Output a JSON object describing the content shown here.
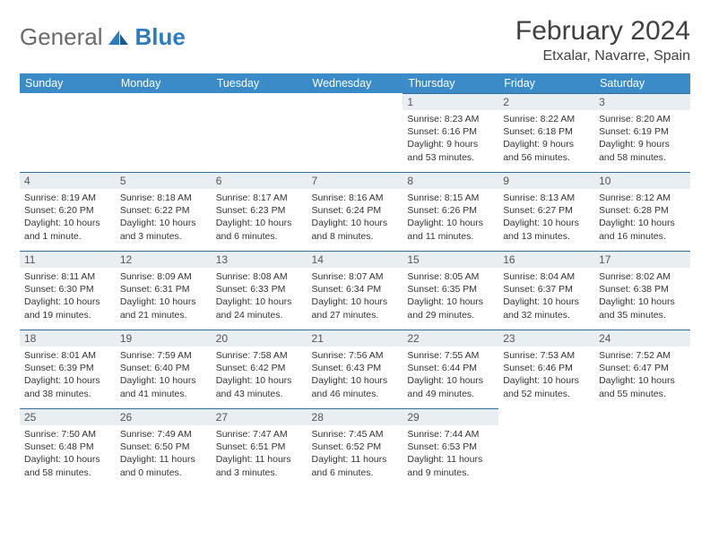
{
  "brand": {
    "name1": "General",
    "name2": "Blue"
  },
  "title": "February 2024",
  "location": "Etxalar, Navarre, Spain",
  "colors": {
    "header_bg": "#3b8bc9",
    "header_text": "#ffffff",
    "daybar_bg": "#e9eef2",
    "daybar_border": "#2d6fa3",
    "text": "#333333",
    "brand_gray": "#6a6a6a",
    "brand_blue": "#2d7cc1"
  },
  "day_headers": [
    "Sunday",
    "Monday",
    "Tuesday",
    "Wednesday",
    "Thursday",
    "Friday",
    "Saturday"
  ],
  "weeks": [
    [
      null,
      null,
      null,
      null,
      {
        "n": "1",
        "sr": "Sunrise: 8:23 AM",
        "ss": "Sunset: 6:16 PM",
        "dl1": "Daylight: 9 hours",
        "dl2": "and 53 minutes."
      },
      {
        "n": "2",
        "sr": "Sunrise: 8:22 AM",
        "ss": "Sunset: 6:18 PM",
        "dl1": "Daylight: 9 hours",
        "dl2": "and 56 minutes."
      },
      {
        "n": "3",
        "sr": "Sunrise: 8:20 AM",
        "ss": "Sunset: 6:19 PM",
        "dl1": "Daylight: 9 hours",
        "dl2": "and 58 minutes."
      }
    ],
    [
      {
        "n": "4",
        "sr": "Sunrise: 8:19 AM",
        "ss": "Sunset: 6:20 PM",
        "dl1": "Daylight: 10 hours",
        "dl2": "and 1 minute."
      },
      {
        "n": "5",
        "sr": "Sunrise: 8:18 AM",
        "ss": "Sunset: 6:22 PM",
        "dl1": "Daylight: 10 hours",
        "dl2": "and 3 minutes."
      },
      {
        "n": "6",
        "sr": "Sunrise: 8:17 AM",
        "ss": "Sunset: 6:23 PM",
        "dl1": "Daylight: 10 hours",
        "dl2": "and 6 minutes."
      },
      {
        "n": "7",
        "sr": "Sunrise: 8:16 AM",
        "ss": "Sunset: 6:24 PM",
        "dl1": "Daylight: 10 hours",
        "dl2": "and 8 minutes."
      },
      {
        "n": "8",
        "sr": "Sunrise: 8:15 AM",
        "ss": "Sunset: 6:26 PM",
        "dl1": "Daylight: 10 hours",
        "dl2": "and 11 minutes."
      },
      {
        "n": "9",
        "sr": "Sunrise: 8:13 AM",
        "ss": "Sunset: 6:27 PM",
        "dl1": "Daylight: 10 hours",
        "dl2": "and 13 minutes."
      },
      {
        "n": "10",
        "sr": "Sunrise: 8:12 AM",
        "ss": "Sunset: 6:28 PM",
        "dl1": "Daylight: 10 hours",
        "dl2": "and 16 minutes."
      }
    ],
    [
      {
        "n": "11",
        "sr": "Sunrise: 8:11 AM",
        "ss": "Sunset: 6:30 PM",
        "dl1": "Daylight: 10 hours",
        "dl2": "and 19 minutes."
      },
      {
        "n": "12",
        "sr": "Sunrise: 8:09 AM",
        "ss": "Sunset: 6:31 PM",
        "dl1": "Daylight: 10 hours",
        "dl2": "and 21 minutes."
      },
      {
        "n": "13",
        "sr": "Sunrise: 8:08 AM",
        "ss": "Sunset: 6:33 PM",
        "dl1": "Daylight: 10 hours",
        "dl2": "and 24 minutes."
      },
      {
        "n": "14",
        "sr": "Sunrise: 8:07 AM",
        "ss": "Sunset: 6:34 PM",
        "dl1": "Daylight: 10 hours",
        "dl2": "and 27 minutes."
      },
      {
        "n": "15",
        "sr": "Sunrise: 8:05 AM",
        "ss": "Sunset: 6:35 PM",
        "dl1": "Daylight: 10 hours",
        "dl2": "and 29 minutes."
      },
      {
        "n": "16",
        "sr": "Sunrise: 8:04 AM",
        "ss": "Sunset: 6:37 PM",
        "dl1": "Daylight: 10 hours",
        "dl2": "and 32 minutes."
      },
      {
        "n": "17",
        "sr": "Sunrise: 8:02 AM",
        "ss": "Sunset: 6:38 PM",
        "dl1": "Daylight: 10 hours",
        "dl2": "and 35 minutes."
      }
    ],
    [
      {
        "n": "18",
        "sr": "Sunrise: 8:01 AM",
        "ss": "Sunset: 6:39 PM",
        "dl1": "Daylight: 10 hours",
        "dl2": "and 38 minutes."
      },
      {
        "n": "19",
        "sr": "Sunrise: 7:59 AM",
        "ss": "Sunset: 6:40 PM",
        "dl1": "Daylight: 10 hours",
        "dl2": "and 41 minutes."
      },
      {
        "n": "20",
        "sr": "Sunrise: 7:58 AM",
        "ss": "Sunset: 6:42 PM",
        "dl1": "Daylight: 10 hours",
        "dl2": "and 43 minutes."
      },
      {
        "n": "21",
        "sr": "Sunrise: 7:56 AM",
        "ss": "Sunset: 6:43 PM",
        "dl1": "Daylight: 10 hours",
        "dl2": "and 46 minutes."
      },
      {
        "n": "22",
        "sr": "Sunrise: 7:55 AM",
        "ss": "Sunset: 6:44 PM",
        "dl1": "Daylight: 10 hours",
        "dl2": "and 49 minutes."
      },
      {
        "n": "23",
        "sr": "Sunrise: 7:53 AM",
        "ss": "Sunset: 6:46 PM",
        "dl1": "Daylight: 10 hours",
        "dl2": "and 52 minutes."
      },
      {
        "n": "24",
        "sr": "Sunrise: 7:52 AM",
        "ss": "Sunset: 6:47 PM",
        "dl1": "Daylight: 10 hours",
        "dl2": "and 55 minutes."
      }
    ],
    [
      {
        "n": "25",
        "sr": "Sunrise: 7:50 AM",
        "ss": "Sunset: 6:48 PM",
        "dl1": "Daylight: 10 hours",
        "dl2": "and 58 minutes."
      },
      {
        "n": "26",
        "sr": "Sunrise: 7:49 AM",
        "ss": "Sunset: 6:50 PM",
        "dl1": "Daylight: 11 hours",
        "dl2": "and 0 minutes."
      },
      {
        "n": "27",
        "sr": "Sunrise: 7:47 AM",
        "ss": "Sunset: 6:51 PM",
        "dl1": "Daylight: 11 hours",
        "dl2": "and 3 minutes."
      },
      {
        "n": "28",
        "sr": "Sunrise: 7:45 AM",
        "ss": "Sunset: 6:52 PM",
        "dl1": "Daylight: 11 hours",
        "dl2": "and 6 minutes."
      },
      {
        "n": "29",
        "sr": "Sunrise: 7:44 AM",
        "ss": "Sunset: 6:53 PM",
        "dl1": "Daylight: 11 hours",
        "dl2": "and 9 minutes."
      },
      null,
      null
    ]
  ]
}
